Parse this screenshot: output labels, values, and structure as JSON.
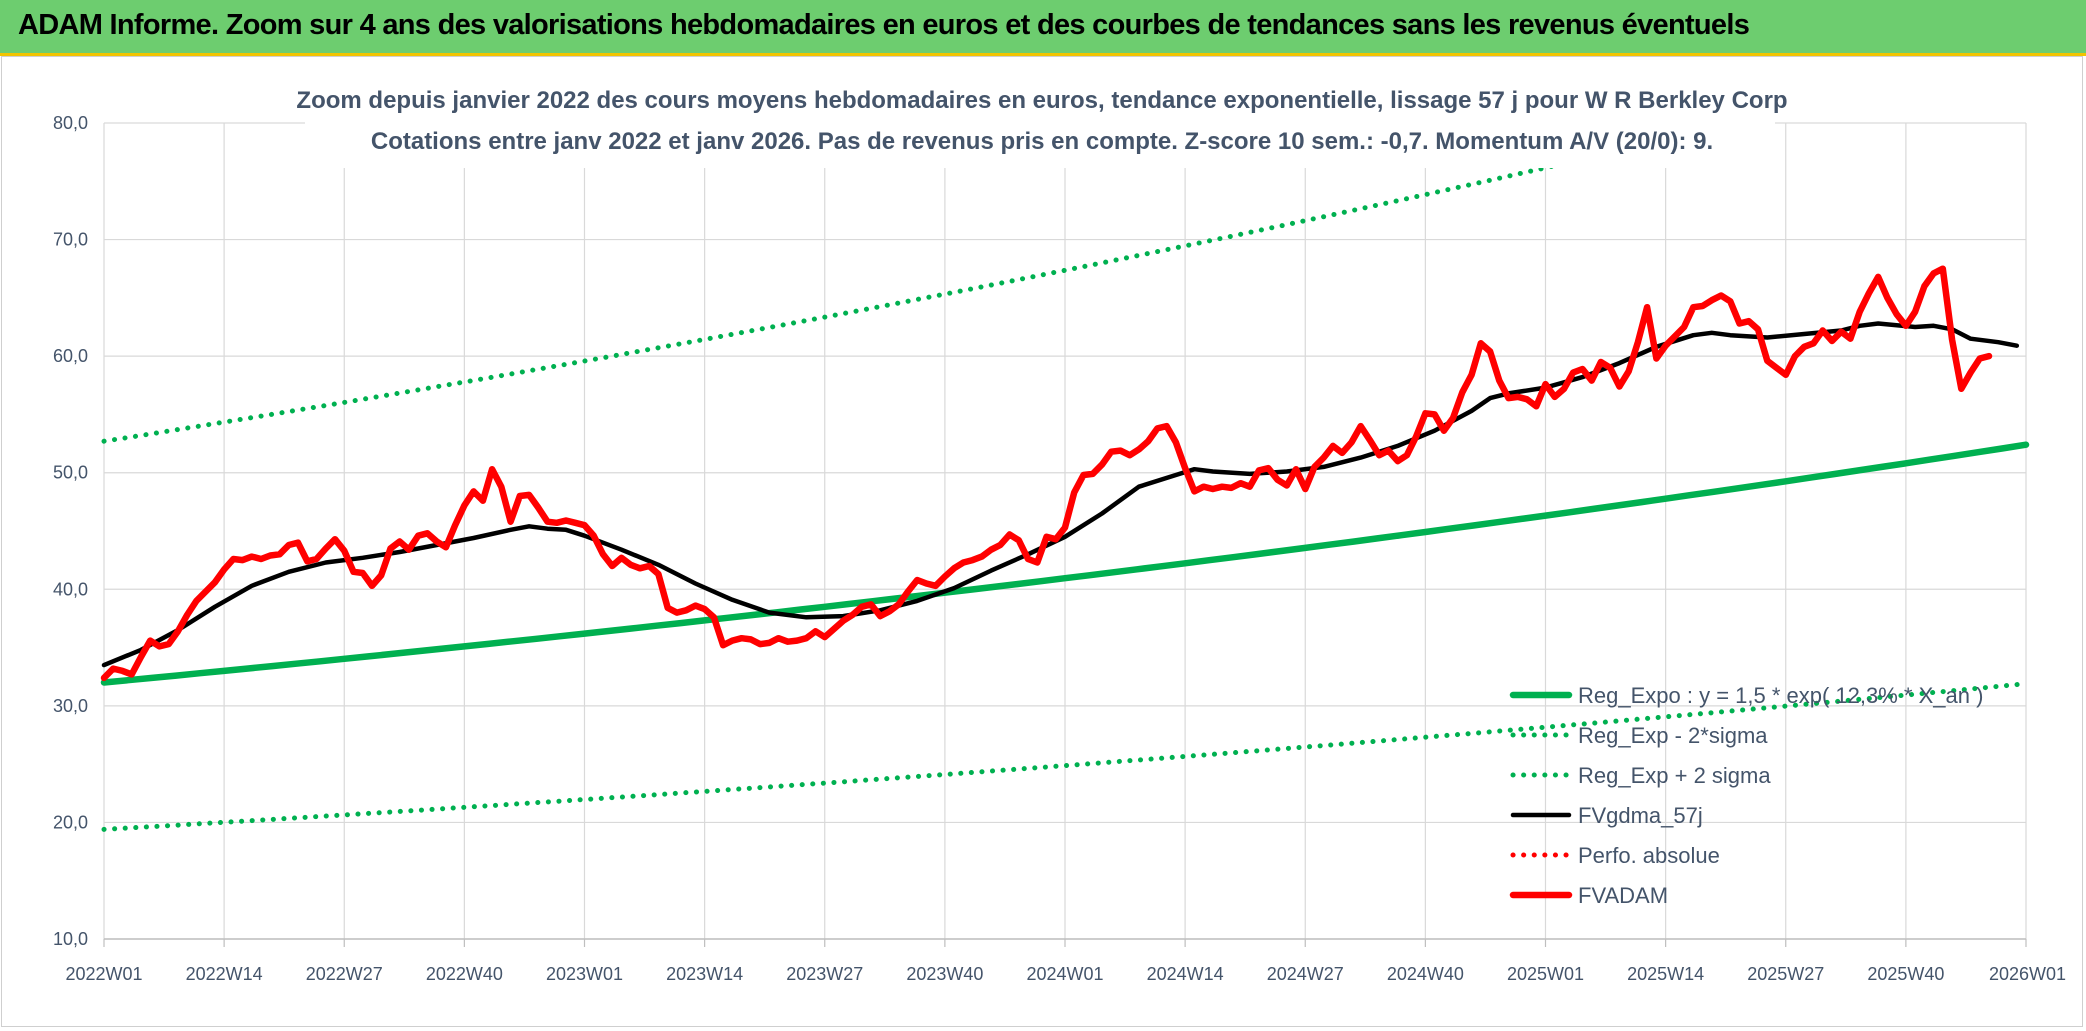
{
  "header": {
    "title": "ADAM Informe. Zoom sur 4 ans des valorisations hebdomadaires en euros et des courbes de tendances sans les revenus éventuels"
  },
  "chart_data": {
    "type": "line",
    "title": "Zoom depuis janvier 2022 des cours moyens hebdomadaires en euros, tendance exponentielle, lissage 57 j pour W R Berkley Corp",
    "subtitle": "Cotations entre janv 2022 et janv 2026. Pas de revenus pris en compte. Z-score 10 sem.: -0,7. Momentum A/V (20/0): 9.",
    "xlabel": "",
    "ylabel": "",
    "ylim": [
      10,
      80
    ],
    "y_ticks": [
      "10,0",
      "20,0",
      "30,0",
      "40,0",
      "50,0",
      "60,0",
      "70,0",
      "80,0"
    ],
    "x_ticks": [
      "2022W01",
      "2022W14",
      "2022W27",
      "2022W40",
      "2023W01",
      "2023W14",
      "2023W27",
      "2023W40",
      "2024W01",
      "2024W14",
      "2024W27",
      "2024W40",
      "2025W01",
      "2025W14",
      "2025W27",
      "2025W40",
      "2026W01"
    ],
    "grid": true,
    "legend_position": "bottom-right",
    "x_index_note": "x values are weekly indices; 0 = 2022W01, 208 = 2026W01",
    "series": [
      {
        "name": "Reg_Expo : y = 1,5 * exp( 12,3% * X_an )",
        "style": "solid",
        "color": "#00b050",
        "points": [
          [
            0,
            32.0
          ],
          [
            208,
            52.4
          ]
        ]
      },
      {
        "name": "Reg_Exp - 2*sigma",
        "style": "dotted",
        "color": "#00b050",
        "points": [
          [
            0,
            19.4
          ],
          [
            208,
            31.9
          ]
        ]
      },
      {
        "name": "Reg_Exp + 2 sigma",
        "style": "dotted",
        "color": "#00b050",
        "points": [
          [
            0,
            52.7
          ],
          [
            208,
            86.1
          ]
        ]
      },
      {
        "name": "FVgdma_57j",
        "style": "solid",
        "color": "#000000",
        "points": [
          [
            0,
            33.5
          ],
          [
            4,
            34.8
          ],
          [
            8,
            36.5
          ],
          [
            12,
            38.5
          ],
          [
            16,
            40.3
          ],
          [
            20,
            41.5
          ],
          [
            24,
            42.3
          ],
          [
            28,
            42.7
          ],
          [
            32,
            43.2
          ],
          [
            36,
            43.8
          ],
          [
            40,
            44.4
          ],
          [
            44,
            45.1
          ],
          [
            46,
            45.4
          ],
          [
            48,
            45.2
          ],
          [
            50,
            45.1
          ],
          [
            52,
            44.6
          ],
          [
            56,
            43.4
          ],
          [
            60,
            42.1
          ],
          [
            64,
            40.5
          ],
          [
            68,
            39.1
          ],
          [
            72,
            38.0
          ],
          [
            76,
            37.6
          ],
          [
            80,
            37.7
          ],
          [
            84,
            38.2
          ],
          [
            88,
            39.0
          ],
          [
            92,
            40.1
          ],
          [
            96,
            41.6
          ],
          [
            100,
            43.0
          ],
          [
            104,
            44.5
          ],
          [
            108,
            46.5
          ],
          [
            112,
            48.8
          ],
          [
            116,
            49.8
          ],
          [
            118,
            50.3
          ],
          [
            120,
            50.1
          ],
          [
            124,
            49.9
          ],
          [
            128,
            50.1
          ],
          [
            132,
            50.5
          ],
          [
            136,
            51.3
          ],
          [
            140,
            52.3
          ],
          [
            144,
            53.6
          ],
          [
            148,
            55.3
          ],
          [
            150,
            56.4
          ],
          [
            152,
            56.8
          ],
          [
            156,
            57.3
          ],
          [
            160,
            58.2
          ],
          [
            164,
            59.4
          ],
          [
            168,
            60.8
          ],
          [
            172,
            61.8
          ],
          [
            174,
            62.0
          ],
          [
            176,
            61.8
          ],
          [
            180,
            61.6
          ],
          [
            184,
            61.9
          ],
          [
            188,
            62.2
          ],
          [
            190,
            62.6
          ],
          [
            192,
            62.8
          ],
          [
            196,
            62.5
          ],
          [
            198,
            62.6
          ],
          [
            200,
            62.3
          ],
          [
            202,
            61.5
          ],
          [
            205,
            61.2
          ],
          [
            207,
            60.9
          ]
        ]
      },
      {
        "name": "Perfo. absolue",
        "style": "dotted",
        "color": "#ff0000",
        "points": []
      },
      {
        "name": "FVADAM",
        "style": "solid",
        "color": "#ff0000",
        "points": [
          [
            0,
            32.4
          ],
          [
            1,
            33.2
          ],
          [
            2,
            33.0
          ],
          [
            3,
            32.7
          ],
          [
            4,
            34.2
          ],
          [
            5,
            35.6
          ],
          [
            6,
            35.1
          ],
          [
            7,
            35.3
          ],
          [
            8,
            36.4
          ],
          [
            9,
            37.8
          ],
          [
            10,
            39.0
          ],
          [
            11,
            39.8
          ],
          [
            12,
            40.6
          ],
          [
            13,
            41.7
          ],
          [
            14,
            42.6
          ],
          [
            15,
            42.5
          ],
          [
            16,
            42.8
          ],
          [
            17,
            42.6
          ],
          [
            18,
            42.9
          ],
          [
            19,
            43.0
          ],
          [
            20,
            43.8
          ],
          [
            21,
            44.0
          ],
          [
            22,
            42.4
          ],
          [
            23,
            42.6
          ],
          [
            24,
            43.5
          ],
          [
            25,
            44.3
          ],
          [
            26,
            43.3
          ],
          [
            27,
            41.5
          ],
          [
            28,
            41.4
          ],
          [
            29,
            40.3
          ],
          [
            30,
            41.2
          ],
          [
            31,
            43.5
          ],
          [
            32,
            44.1
          ],
          [
            33,
            43.4
          ],
          [
            34,
            44.6
          ],
          [
            35,
            44.8
          ],
          [
            36,
            44.1
          ],
          [
            37,
            43.6
          ],
          [
            38,
            45.5
          ],
          [
            39,
            47.2
          ],
          [
            40,
            48.4
          ],
          [
            41,
            47.6
          ],
          [
            42,
            50.3
          ],
          [
            43,
            48.8
          ],
          [
            44,
            45.8
          ],
          [
            45,
            48.0
          ],
          [
            46,
            48.1
          ],
          [
            47,
            47.0
          ],
          [
            48,
            45.8
          ],
          [
            49,
            45.7
          ],
          [
            50,
            45.9
          ],
          [
            51,
            45.7
          ],
          [
            52,
            45.5
          ],
          [
            53,
            44.6
          ],
          [
            54,
            43.0
          ],
          [
            55,
            42.0
          ],
          [
            56,
            42.7
          ],
          [
            57,
            42.1
          ],
          [
            58,
            41.8
          ],
          [
            59,
            42.0
          ],
          [
            60,
            41.3
          ],
          [
            61,
            38.4
          ],
          [
            62,
            38.0
          ],
          [
            63,
            38.2
          ],
          [
            64,
            38.6
          ],
          [
            65,
            38.3
          ],
          [
            66,
            37.6
          ],
          [
            67,
            35.2
          ],
          [
            68,
            35.6
          ],
          [
            69,
            35.8
          ],
          [
            70,
            35.7
          ],
          [
            71,
            35.3
          ],
          [
            72,
            35.4
          ],
          [
            73,
            35.8
          ],
          [
            74,
            35.5
          ],
          [
            75,
            35.6
          ],
          [
            76,
            35.8
          ],
          [
            77,
            36.4
          ],
          [
            78,
            35.9
          ],
          [
            79,
            36.6
          ],
          [
            80,
            37.3
          ],
          [
            81,
            37.8
          ],
          [
            82,
            38.5
          ],
          [
            83,
            38.7
          ],
          [
            84,
            37.7
          ],
          [
            85,
            38.1
          ],
          [
            86,
            38.7
          ],
          [
            87,
            39.8
          ],
          [
            88,
            40.8
          ],
          [
            89,
            40.5
          ],
          [
            90,
            40.3
          ],
          [
            91,
            41.1
          ],
          [
            92,
            41.8
          ],
          [
            93,
            42.3
          ],
          [
            94,
            42.5
          ],
          [
            95,
            42.8
          ],
          [
            96,
            43.4
          ],
          [
            97,
            43.8
          ],
          [
            98,
            44.7
          ],
          [
            99,
            44.2
          ],
          [
            100,
            42.6
          ],
          [
            101,
            42.3
          ],
          [
            102,
            44.5
          ],
          [
            103,
            44.3
          ],
          [
            104,
            45.3
          ],
          [
            105,
            48.3
          ],
          [
            106,
            49.8
          ],
          [
            107,
            49.9
          ],
          [
            108,
            50.7
          ],
          [
            109,
            51.8
          ],
          [
            110,
            51.9
          ],
          [
            111,
            51.5
          ],
          [
            112,
            52.0
          ],
          [
            113,
            52.7
          ],
          [
            114,
            53.8
          ],
          [
            115,
            54.0
          ],
          [
            116,
            52.6
          ],
          [
            117,
            50.4
          ],
          [
            118,
            48.4
          ],
          [
            119,
            48.8
          ],
          [
            120,
            48.6
          ],
          [
            121,
            48.8
          ],
          [
            122,
            48.7
          ],
          [
            123,
            49.1
          ],
          [
            124,
            48.8
          ],
          [
            125,
            50.2
          ],
          [
            126,
            50.4
          ],
          [
            127,
            49.4
          ],
          [
            128,
            48.9
          ],
          [
            129,
            50.3
          ],
          [
            130,
            48.6
          ],
          [
            131,
            50.5
          ],
          [
            132,
            51.3
          ],
          [
            133,
            52.3
          ],
          [
            134,
            51.7
          ],
          [
            135,
            52.6
          ],
          [
            136,
            54.0
          ],
          [
            137,
            52.8
          ],
          [
            138,
            51.5
          ],
          [
            139,
            51.9
          ],
          [
            140,
            51.0
          ],
          [
            141,
            51.5
          ],
          [
            142,
            53.1
          ],
          [
            143,
            55.1
          ],
          [
            144,
            55.0
          ],
          [
            145,
            53.6
          ],
          [
            146,
            54.7
          ],
          [
            147,
            56.9
          ],
          [
            148,
            58.4
          ],
          [
            149,
            61.1
          ],
          [
            150,
            60.4
          ],
          [
            151,
            57.9
          ],
          [
            152,
            56.4
          ],
          [
            153,
            56.5
          ],
          [
            154,
            56.3
          ],
          [
            155,
            55.7
          ],
          [
            156,
            57.6
          ],
          [
            157,
            56.5
          ],
          [
            158,
            57.2
          ],
          [
            159,
            58.6
          ],
          [
            160,
            58.9
          ],
          [
            161,
            57.9
          ],
          [
            162,
            59.5
          ],
          [
            163,
            59.0
          ],
          [
            164,
            57.4
          ],
          [
            165,
            58.7
          ],
          [
            166,
            61.2
          ],
          [
            167,
            64.2
          ],
          [
            168,
            59.8
          ],
          [
            169,
            60.9
          ],
          [
            170,
            61.7
          ],
          [
            171,
            62.5
          ],
          [
            172,
            64.2
          ],
          [
            173,
            64.3
          ],
          [
            174,
            64.8
          ],
          [
            175,
            65.2
          ],
          [
            176,
            64.7
          ],
          [
            177,
            62.8
          ],
          [
            178,
            63.0
          ],
          [
            179,
            62.3
          ],
          [
            180,
            59.6
          ],
          [
            181,
            59.0
          ],
          [
            182,
            58.4
          ],
          [
            183,
            60.0
          ],
          [
            184,
            60.8
          ],
          [
            185,
            61.1
          ],
          [
            186,
            62.2
          ],
          [
            187,
            61.3
          ],
          [
            188,
            62.1
          ],
          [
            189,
            61.5
          ],
          [
            190,
            63.8
          ],
          [
            191,
            65.4
          ],
          [
            192,
            66.8
          ],
          [
            193,
            65.0
          ],
          [
            194,
            63.6
          ],
          [
            195,
            62.6
          ],
          [
            196,
            63.8
          ],
          [
            197,
            66.0
          ],
          [
            198,
            67.1
          ],
          [
            199,
            67.5
          ],
          [
            200,
            61.4
          ],
          [
            201,
            57.2
          ],
          [
            202,
            58.6
          ],
          [
            203,
            59.8
          ],
          [
            204,
            60.0
          ]
        ]
      }
    ]
  }
}
